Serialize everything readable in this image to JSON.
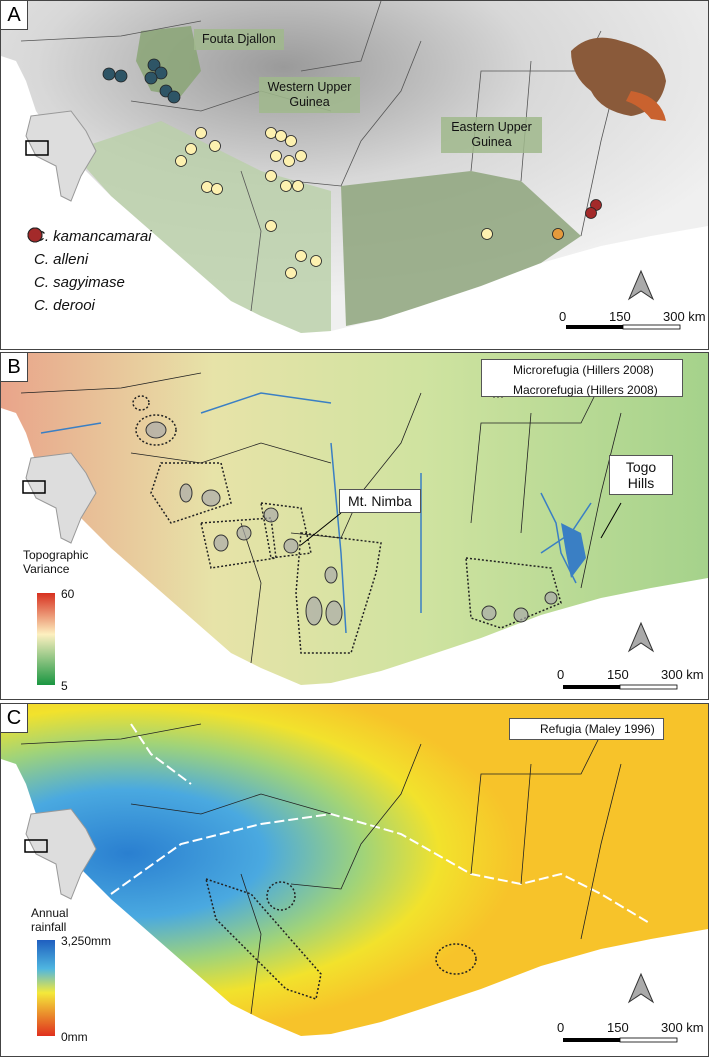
{
  "panels": [
    {
      "label": "A",
      "regions": [
        "Fouta Djallon",
        "Western Upper Guinea",
        "Eastern Upper Guinea"
      ],
      "legend": [
        {
          "name": "C. kamancamarai",
          "color": "#2e5566"
        },
        {
          "name": "C. alleni",
          "color": "#fdf1b0"
        },
        {
          "name": "C. sagyimase",
          "color": "#e59a3c"
        },
        {
          "name": "C. derooi",
          "color": "#a32a2a"
        }
      ],
      "scale": [
        "0",
        "150",
        "300 km"
      ]
    },
    {
      "label": "B",
      "legend": [
        "Microrefugia (Hillers 2008)",
        "Macrorefugia (Hillers 2008)"
      ],
      "annotations": [
        "Mt. Nimba",
        "Togo Hills"
      ],
      "colorbar": {
        "title": "Topographic Variance",
        "max": "60",
        "min": "5"
      },
      "scale": [
        "0",
        "150",
        "300 km"
      ]
    },
    {
      "label": "C",
      "legend": [
        "Refugia (Maley 1996)"
      ],
      "colorbar": {
        "title": "Annual rainfall",
        "max": "3,250mm",
        "min": "0mm"
      },
      "scale": [
        "0",
        "150",
        "300 km"
      ]
    }
  ]
}
